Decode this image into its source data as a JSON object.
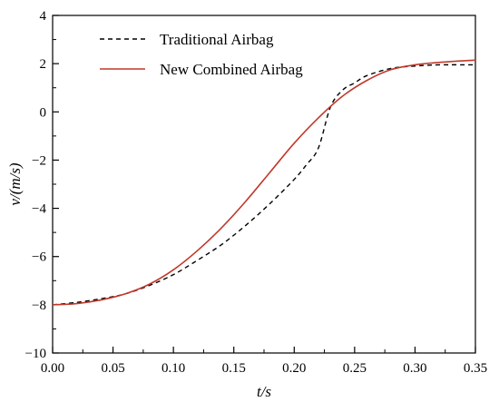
{
  "chart_data": {
    "type": "line",
    "title": "",
    "xlabel": "t/s",
    "ylabel": "v/(m/s)",
    "xlim": [
      0.0,
      0.35
    ],
    "ylim": [
      -10,
      4
    ],
    "xticks": [
      "0.00",
      "0.05",
      "0.10",
      "0.15",
      "0.20",
      "0.25",
      "0.30",
      "0.35"
    ],
    "yticks": [
      "−10",
      "−8",
      "−6",
      "−4",
      "−2",
      "0",
      "2",
      "4"
    ],
    "grid": false,
    "legend_position": "top-left",
    "series": [
      {
        "name": "Traditional Airbag",
        "color": "#000000",
        "style": "dashed",
        "x": [
          0.0,
          0.02,
          0.04,
          0.06,
          0.08,
          0.1,
          0.12,
          0.14,
          0.16,
          0.18,
          0.2,
          0.21,
          0.22,
          0.23,
          0.24,
          0.25,
          0.26,
          0.28,
          0.3,
          0.32,
          0.35
        ],
        "y": [
          -8.0,
          -7.9,
          -7.75,
          -7.55,
          -7.2,
          -6.75,
          -6.15,
          -5.5,
          -4.7,
          -3.8,
          -2.8,
          -2.2,
          -1.5,
          0.2,
          0.9,
          1.2,
          1.5,
          1.8,
          1.9,
          1.95,
          1.95
        ]
      },
      {
        "name": "New Combined Airbag",
        "color": "#c0392b",
        "style": "solid",
        "x": [
          0.0,
          0.02,
          0.04,
          0.06,
          0.08,
          0.1,
          0.12,
          0.14,
          0.16,
          0.18,
          0.2,
          0.22,
          0.24,
          0.26,
          0.28,
          0.3,
          0.32,
          0.35
        ],
        "y": [
          -8.0,
          -7.95,
          -7.8,
          -7.55,
          -7.15,
          -6.55,
          -5.75,
          -4.8,
          -3.7,
          -2.5,
          -1.3,
          -0.25,
          0.65,
          1.3,
          1.75,
          1.95,
          2.05,
          2.15
        ]
      }
    ]
  }
}
